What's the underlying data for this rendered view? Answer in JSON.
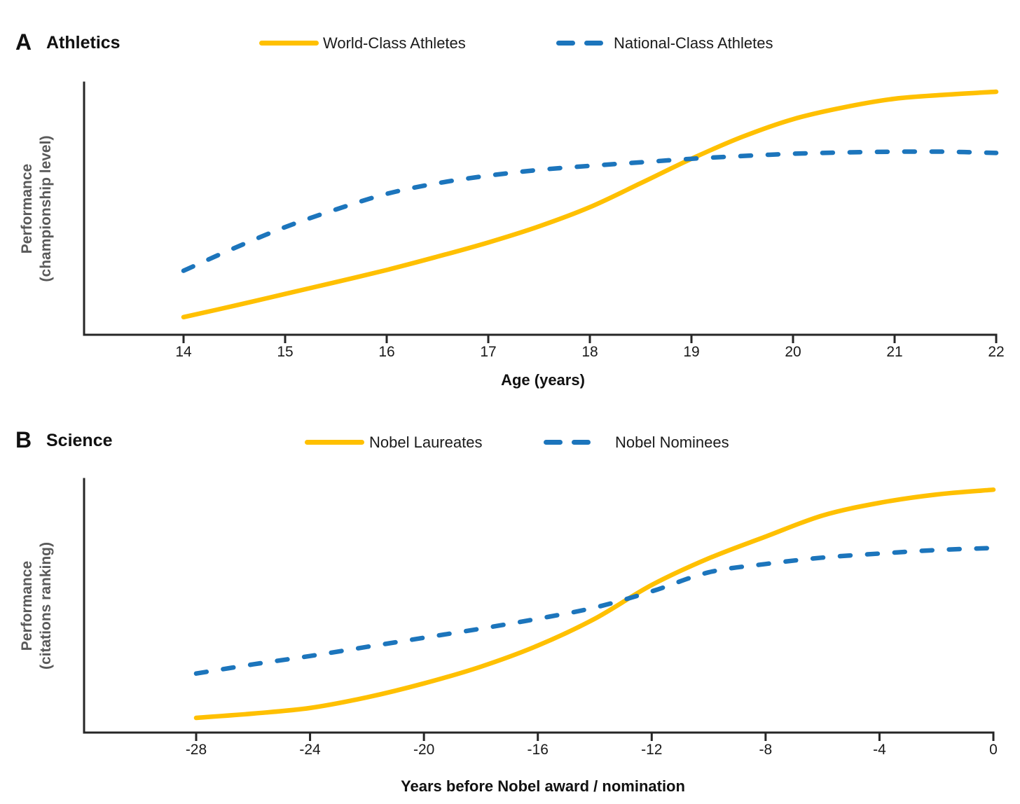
{
  "colors": {
    "yellow": "#FFC000",
    "blue": "#1C75BC",
    "axis": "#262626",
    "tick_text": "#1a1a1a",
    "ylabel_text": "#595959"
  },
  "panels": [
    {
      "letter": "A",
      "title": "Athletics",
      "legend": [
        {
          "label": "World-Class Athletes",
          "style": "solid"
        },
        {
          "label": "National-Class Athletes",
          "style": "dashed"
        }
      ],
      "ylabel": [
        "Performance",
        "(championship level)"
      ],
      "xlabel": "Age (years)"
    },
    {
      "letter": "B",
      "title": "Science",
      "legend": [
        {
          "label": "Nobel Laureates",
          "style": "solid"
        },
        {
          "label": "Nobel Nominees",
          "style": "dashed"
        }
      ],
      "ylabel": [
        "Performance",
        "(citations ranking)"
      ],
      "xlabel": "Years before Nobel award / nomination"
    }
  ],
  "chart_data": [
    {
      "type": "line",
      "title": "A Athletics",
      "xlabel": "Age (years)",
      "ylabel": "Performance (championship level)",
      "xlim": [
        14,
        22
      ],
      "ylim": [
        0,
        1
      ],
      "x_ticks": [
        14,
        15,
        16,
        17,
        18,
        19,
        20,
        21,
        22
      ],
      "grid": false,
      "legend_position": "top",
      "series": [
        {
          "name": "World-Class Athletes",
          "style": "solid",
          "color": "#FFC000",
          "x": [
            14,
            14.5,
            15,
            15.5,
            16,
            16.5,
            17,
            17.5,
            18,
            18.5,
            19,
            19.5,
            20,
            20.5,
            21,
            21.5,
            22
          ],
          "y": [
            0.07,
            0.115,
            0.162,
            0.209,
            0.257,
            0.31,
            0.366,
            0.43,
            0.506,
            0.601,
            0.698,
            0.785,
            0.855,
            0.902,
            0.936,
            0.952,
            0.964
          ]
        },
        {
          "name": "National-Class Athletes",
          "style": "dashed",
          "color": "#1C75BC",
          "x": [
            14,
            14.5,
            15,
            15.5,
            16,
            16.5,
            17,
            17.5,
            18,
            18.5,
            19,
            19.5,
            20,
            20.5,
            21,
            21.5,
            22
          ],
          "y": [
            0.254,
            0.344,
            0.427,
            0.497,
            0.559,
            0.601,
            0.631,
            0.654,
            0.67,
            0.684,
            0.698,
            0.709,
            0.718,
            0.723,
            0.726,
            0.726,
            0.721
          ]
        }
      ]
    },
    {
      "type": "line",
      "title": "B Science",
      "xlabel": "Years before Nobel award / nomination",
      "ylabel": "Performance (citations ranking)",
      "xlim": [
        -28,
        0
      ],
      "ylim": [
        0,
        1
      ],
      "x_ticks": [
        -28,
        -24,
        -20,
        -16,
        -12,
        -8,
        -4,
        0
      ],
      "grid": false,
      "legend_position": "top",
      "series": [
        {
          "name": "Nobel Laureates",
          "style": "solid",
          "color": "#FFC000",
          "x": [
            -28,
            -26,
            -24,
            -22,
            -20,
            -18,
            -16,
            -14,
            -12,
            -10,
            -8,
            -6,
            -4,
            -2,
            0
          ],
          "y": [
            0.058,
            0.075,
            0.097,
            0.139,
            0.194,
            0.26,
            0.343,
            0.449,
            0.582,
            0.687,
            0.773,
            0.856,
            0.906,
            0.939,
            0.958
          ]
        },
        {
          "name": "Nobel Nominees",
          "style": "dashed",
          "color": "#1C75BC",
          "x": [
            -28,
            -26,
            -24,
            -22,
            -20,
            -18,
            -16,
            -14,
            -12,
            -10,
            -8,
            -6,
            -4,
            -2,
            0
          ],
          "y": [
            0.233,
            0.269,
            0.302,
            0.338,
            0.374,
            0.41,
            0.449,
            0.493,
            0.557,
            0.632,
            0.665,
            0.69,
            0.706,
            0.72,
            0.728
          ]
        }
      ]
    }
  ]
}
